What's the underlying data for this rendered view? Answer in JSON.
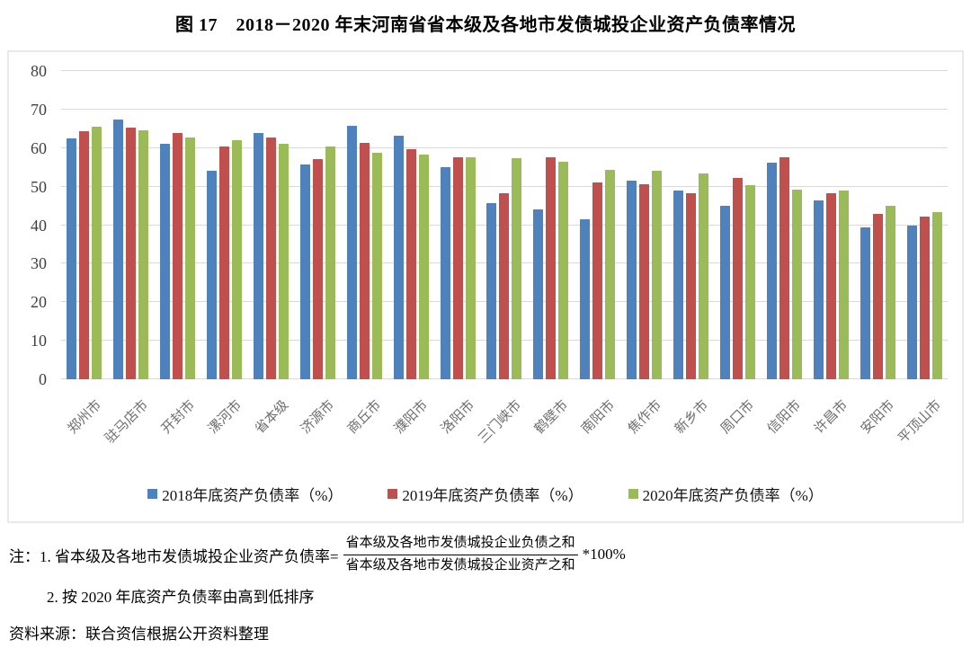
{
  "title": "图 17　2018－2020 年末河南省省本级及各地市发债城投企业资产负债率情况",
  "chart_data": {
    "type": "bar",
    "categories": [
      "郑州市",
      "驻马店市",
      "开封市",
      "漯河市",
      "省本级",
      "济源市",
      "商丘市",
      "濮阳市",
      "洛阳市",
      "三门峡市",
      "鹤壁市",
      "南阳市",
      "焦作市",
      "新乡市",
      "周口市",
      "信阳市",
      "许昌市",
      "安阳市",
      "平顶山市"
    ],
    "series": [
      {
        "name": "2018年底资产负债率（%）",
        "color": "#4F81BD",
        "values": [
          62.4,
          67.5,
          61.2,
          54.1,
          63.9,
          55.7,
          65.8,
          63.3,
          55.1,
          45.8,
          44.1,
          41.6,
          51.5,
          49.0,
          45.0,
          56.2,
          46.5,
          39.4,
          39.9
        ]
      },
      {
        "name": "2019年底资产负债率（%）",
        "color": "#C0504D",
        "values": [
          64.3,
          65.2,
          64.0,
          60.4,
          62.7,
          57.2,
          61.3,
          59.6,
          57.7,
          48.4,
          57.6,
          51.1,
          50.7,
          48.2,
          52.3,
          57.5,
          48.2,
          42.9,
          42.3
        ]
      },
      {
        "name": "2020年底资产负债率（%）",
        "color": "#9BBB59",
        "values": [
          65.5,
          64.7,
          62.7,
          62.0,
          61.0,
          60.4,
          58.7,
          58.3,
          57.6,
          57.4,
          56.5,
          54.3,
          54.0,
          53.4,
          50.4,
          49.3,
          48.9,
          45.0,
          43.3
        ]
      }
    ],
    "ylim": [
      0,
      80
    ],
    "yticks": [
      0,
      10,
      20,
      30,
      40,
      50,
      60,
      70,
      80
    ],
    "grid": true,
    "legend_position": "bottom",
    "gridline_color": "#d9d9d9"
  },
  "notes": {
    "note1_prefix": "注：1. 省本级及各地市发债城投企业资产负债率=",
    "fraction_numerator": "省本级及各地市发债城投企业负债之和",
    "fraction_denominator": "省本级及各地市发债城投企业资产之和",
    "note1_suffix": "*100%",
    "note2": "2. 按 2020 年底资产负债率由高到低排序",
    "source": "资料来源：联合资信根据公开资料整理"
  }
}
